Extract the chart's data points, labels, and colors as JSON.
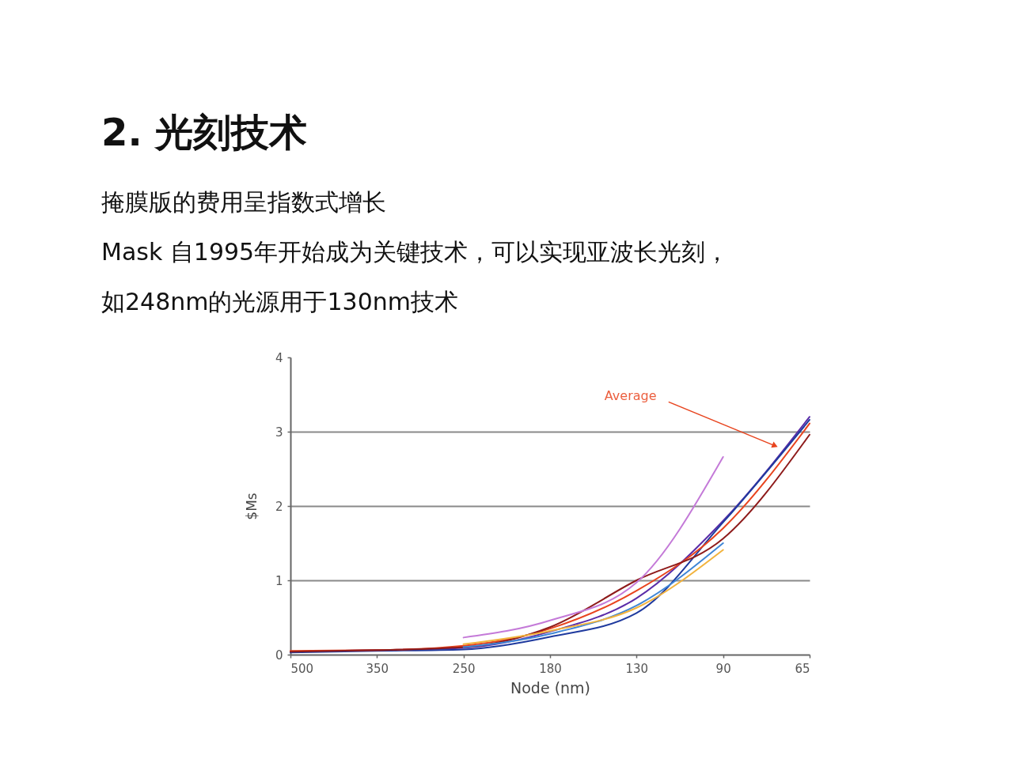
{
  "chart_data": {
    "type": "line",
    "title": "2. 光刻技术",
    "subtitle": "掩膜版的费用呈指数式增长",
    "annotations": [
      "Mask 自1995年开始成为关键技术，可以实现亚波长光刻，",
      "如248nm的光源用于130nm技术"
    ],
    "xlabel": "Node (nm)",
    "ylabel": "$Ms",
    "categories": [
      "500",
      "350",
      "250",
      "180",
      "130",
      "90",
      "65"
    ],
    "ylim": [
      0,
      4
    ],
    "yticks": [
      0,
      1,
      2,
      3,
      4
    ],
    "grid": "y",
    "line_style": "solid",
    "series": [
      {
        "color": "#5a2ca8",
        "values": [
          0.04,
          0.06,
          0.09,
          0.31,
          0.76,
          1.8,
          3.2
        ]
      },
      {
        "color": "#1f3a9e",
        "values": [
          0.03,
          0.05,
          0.07,
          0.24,
          0.56,
          1.78,
          3.16
        ]
      },
      {
        "name": "Average",
        "color": "#e8441e",
        "values": [
          0.05,
          0.06,
          0.12,
          0.35,
          0.86,
          1.7,
          3.11
        ]
      },
      {
        "color": "#8e1b1b",
        "values": [
          0.04,
          0.06,
          0.1,
          0.37,
          1.0,
          1.56,
          2.96
        ]
      },
      {
        "color": "#c47ad8",
        "values": [
          null,
          null,
          0.23,
          0.46,
          0.97,
          2.66,
          null
        ]
      },
      {
        "color": "#3f86d6",
        "values": [
          null,
          null,
          0.1,
          0.28,
          0.66,
          1.5,
          null
        ]
      },
      {
        "color": "#f2b33d",
        "values": [
          null,
          null,
          0.14,
          0.32,
          0.63,
          1.41,
          null
        ]
      }
    ]
  }
}
